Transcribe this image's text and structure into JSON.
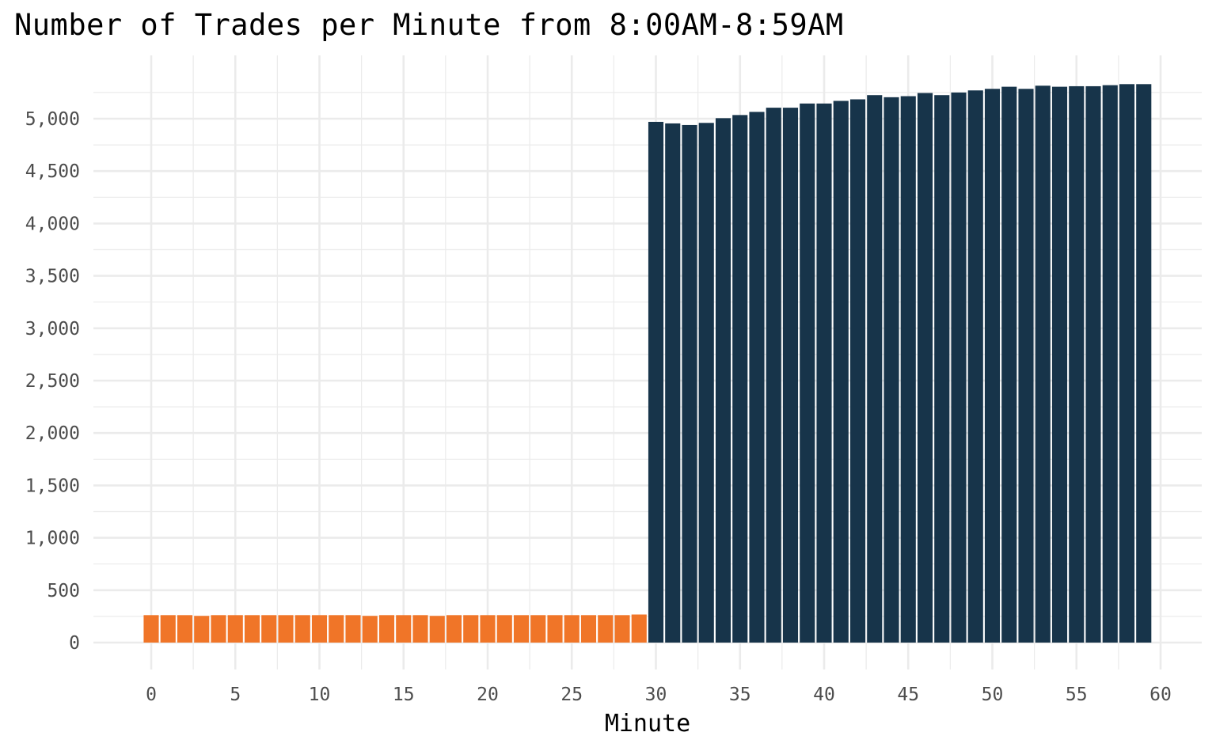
{
  "chart_data": {
    "type": "bar",
    "title": "Number of Trades per Minute from 8:00AM-8:59AM",
    "xlabel": "Minute",
    "ylabel": "",
    "xlim": [
      -1,
      61
    ],
    "ylim": [
      -250,
      5500
    ],
    "x_ticks": [
      0,
      5,
      10,
      15,
      20,
      25,
      30,
      35,
      40,
      45,
      50,
      55,
      60
    ],
    "x_tick_labels": [
      "0",
      "5",
      "10",
      "15",
      "20",
      "25",
      "30",
      "35",
      "40",
      "45",
      "50",
      "55",
      "60"
    ],
    "y_ticks": [
      0,
      500,
      1000,
      1500,
      2000,
      2500,
      3000,
      3500,
      4000,
      4500,
      5000
    ],
    "y_tick_labels": [
      "0",
      "500",
      "1,000",
      "1,500",
      "2,000",
      "2,500",
      "3,000",
      "3,500",
      "4,000",
      "4,500",
      "5,000"
    ],
    "grid": true,
    "legend": "none",
    "x": [
      0,
      1,
      2,
      3,
      4,
      5,
      6,
      7,
      8,
      9,
      10,
      11,
      12,
      13,
      14,
      15,
      16,
      17,
      18,
      19,
      20,
      21,
      22,
      23,
      24,
      25,
      26,
      27,
      28,
      29,
      30,
      31,
      32,
      33,
      34,
      35,
      36,
      37,
      38,
      39,
      40,
      41,
      42,
      43,
      44,
      45,
      46,
      47,
      48,
      49,
      50,
      51,
      52,
      53,
      54,
      55,
      56,
      57,
      58,
      59
    ],
    "values": [
      262,
      262,
      262,
      255,
      262,
      262,
      262,
      262,
      262,
      262,
      262,
      262,
      262,
      255,
      262,
      262,
      262,
      255,
      262,
      262,
      262,
      262,
      262,
      262,
      262,
      262,
      262,
      262,
      262,
      268,
      4970,
      4955,
      4940,
      4960,
      5005,
      5035,
      5065,
      5105,
      5105,
      5145,
      5145,
      5170,
      5185,
      5225,
      5205,
      5215,
      5245,
      5225,
      5250,
      5270,
      5285,
      5305,
      5285,
      5315,
      5305,
      5310,
      5310,
      5320,
      5330,
      5330
    ],
    "bar_colors": [
      "#f07528",
      "#f07528",
      "#f07528",
      "#f07528",
      "#f07528",
      "#f07528",
      "#f07528",
      "#f07528",
      "#f07528",
      "#f07528",
      "#f07528",
      "#f07528",
      "#f07528",
      "#f07528",
      "#f07528",
      "#f07528",
      "#f07528",
      "#f07528",
      "#f07528",
      "#f07528",
      "#f07528",
      "#f07528",
      "#f07528",
      "#f07528",
      "#f07528",
      "#f07528",
      "#f07528",
      "#f07528",
      "#f07528",
      "#f07528",
      "#17344a",
      "#17344a",
      "#17344a",
      "#17344a",
      "#17344a",
      "#17344a",
      "#17344a",
      "#17344a",
      "#17344a",
      "#17344a",
      "#17344a",
      "#17344a",
      "#17344a",
      "#17344a",
      "#17344a",
      "#17344a",
      "#17344a",
      "#17344a",
      "#17344a",
      "#17344a",
      "#17344a",
      "#17344a",
      "#17344a",
      "#17344a",
      "#17344a",
      "#17344a",
      "#17344a",
      "#17344a",
      "#17344a",
      "#17344a"
    ],
    "colors": {
      "early": "#f07528",
      "late": "#17344a",
      "grid": "#ebebeb",
      "tick_text": "#4d4d4d"
    }
  }
}
